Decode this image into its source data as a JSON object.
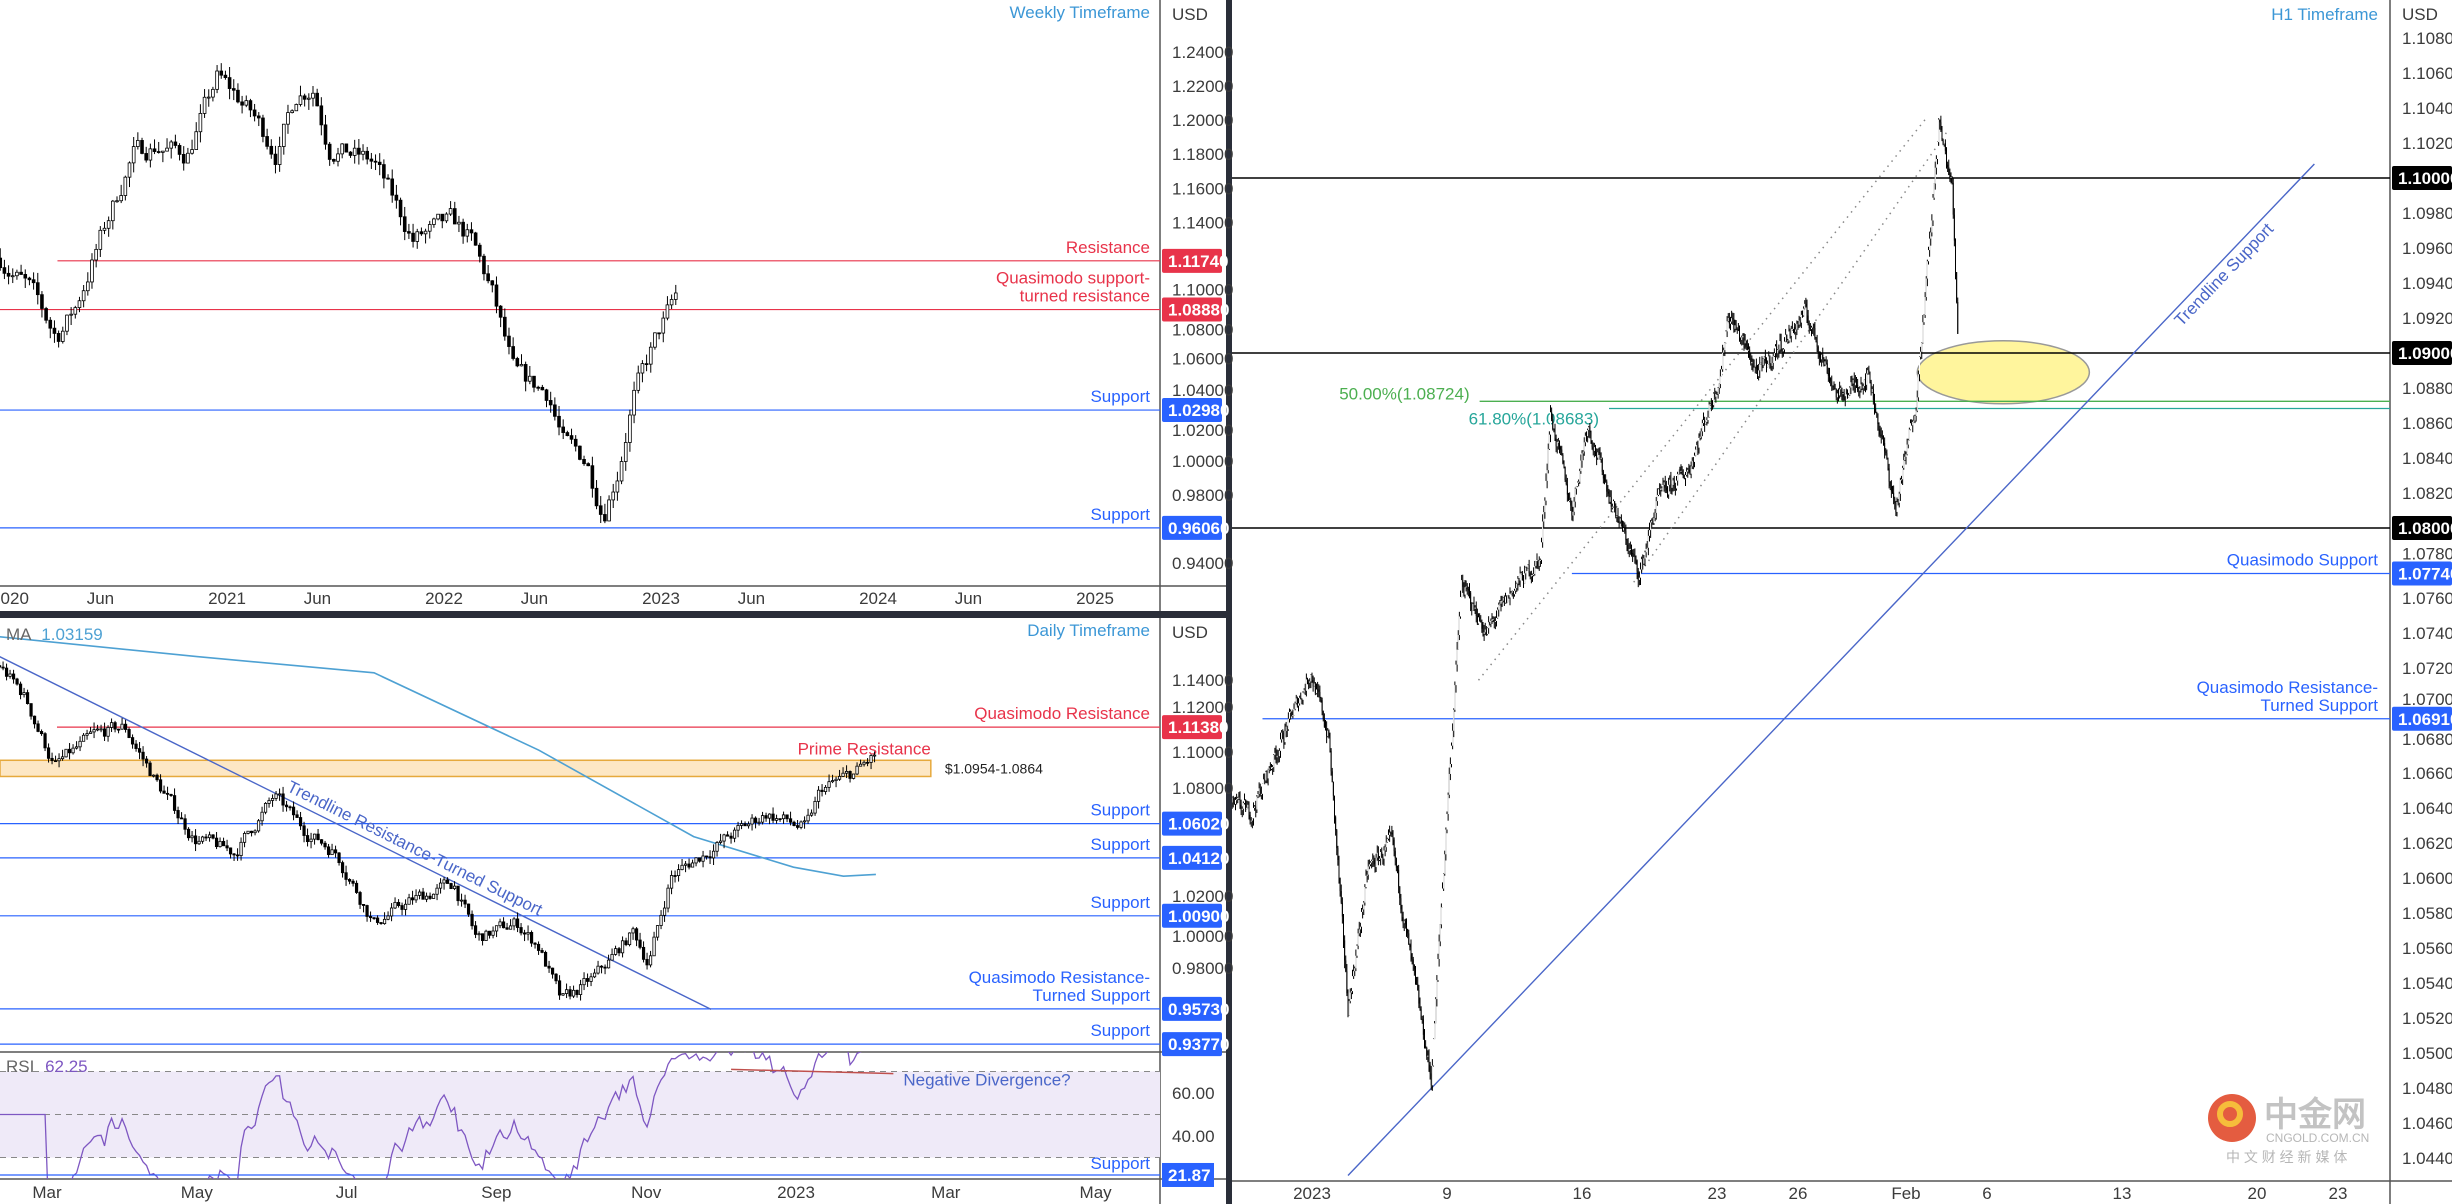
{
  "colors": {
    "red": "#e8334a",
    "blue": "#2962ff",
    "black": "#000000",
    "title_blue": "#3c97d6",
    "ma": "#4ea1d3",
    "rsi": "#7e57c2",
    "zone": "#fde7c4",
    "zone_border": "#e6a93c",
    "fib50": "#4caf50",
    "fib618": "#26a69a",
    "ellipse": "#fff59d"
  },
  "watermark": {
    "brand": "中金网",
    "domain": "CNGOLD.COM.CN",
    "tagline": "中 文 财 经 新 媒 体"
  },
  "chart_data": [
    {
      "id": "weekly",
      "type": "candlestick",
      "title": "Weekly Timeframe",
      "currency": "USD",
      "price_ticks": [
        "1.24000",
        "1.22000",
        "1.20000",
        "1.18000",
        "1.16000",
        "1.14000",
        "1.10000",
        "1.08000",
        "1.06000",
        "1.04000",
        "1.02000",
        "1.00000",
        "0.98000",
        "0.94000"
      ],
      "date_ticks": [
        {
          "label": "2020",
          "date": "2020-01-01"
        },
        {
          "label": "Jun",
          "date": "2020-06-01"
        },
        {
          "label": "2021",
          "date": "2021-01-01"
        },
        {
          "label": "Jun",
          "date": "2021-06-01"
        },
        {
          "label": "2022",
          "date": "2022-01-01"
        },
        {
          "label": "Jun",
          "date": "2022-06-01"
        },
        {
          "label": "2023",
          "date": "2023-01-01"
        },
        {
          "label": "Jun",
          "date": "2023-06-01"
        },
        {
          "label": "2024",
          "date": "2024-01-01"
        },
        {
          "label": "Jun",
          "date": "2024-06-01"
        },
        {
          "label": "2025",
          "date": "2025-01-01"
        }
      ],
      "levels": [
        {
          "price": 1.1174,
          "value_label": "1.11740",
          "text": [
            "Resistance"
          ],
          "color": "red",
          "from": "2020-03-20"
        },
        {
          "price": 1.0888,
          "value_label": "1.08880",
          "text": [
            "Quasimodo support-",
            "turned resistance"
          ],
          "color": "red",
          "from": "2019-12-01"
        },
        {
          "price": 1.0298,
          "value_label": "1.02980",
          "text": [
            "Support"
          ],
          "color": "blue",
          "from": "2019-12-01"
        },
        {
          "price": 0.9606,
          "value_label": "0.96060",
          "text": [
            "Support"
          ],
          "color": "blue",
          "from": "2019-12-01"
        }
      ],
      "price_path": [
        [
          "2019-12-15",
          1.119
        ],
        [
          "2020-02-05",
          1.1
        ],
        [
          "2020-03-18",
          1.073
        ],
        [
          "2020-04-20",
          1.09
        ],
        [
          "2020-06-01",
          1.13
        ],
        [
          "2020-07-25",
          1.18
        ],
        [
          "2020-09-01",
          1.185
        ],
        [
          "2020-10-25",
          1.18
        ],
        [
          "2020-12-15",
          1.225
        ],
        [
          "2021-01-15",
          1.215
        ],
        [
          "2021-02-20",
          1.2
        ],
        [
          "2021-03-25",
          1.18
        ],
        [
          "2021-04-25",
          1.215
        ],
        [
          "2021-05-25",
          1.22
        ],
        [
          "2021-06-20",
          1.185
        ],
        [
          "2021-09-05",
          1.175
        ],
        [
          "2021-11-10",
          1.13
        ],
        [
          "2022-01-15",
          1.14
        ],
        [
          "2022-02-15",
          1.13
        ],
        [
          "2022-03-20",
          1.1
        ],
        [
          "2022-04-28",
          1.05
        ],
        [
          "2022-06-25",
          1.04
        ],
        [
          "2022-07-20",
          1.01
        ],
        [
          "2022-08-28",
          1.0
        ],
        [
          "2022-09-25",
          0.97
        ],
        [
          "2022-10-20",
          0.995
        ],
        [
          "2022-11-15",
          1.037
        ],
        [
          "2022-12-25",
          1.073
        ],
        [
          "2023-02-01",
          1.1
        ]
      ]
    },
    {
      "id": "daily",
      "type": "candlestick",
      "title": "Daily Timeframe",
      "currency": "USD",
      "ma": {
        "label": "MA",
        "value": "1.03159",
        "path": [
          [
            "2022-02-12",
            1.164
          ],
          [
            "2022-05-01",
            1.153
          ],
          [
            "2022-07-12",
            1.144
          ],
          [
            "2022-09-18",
            1.101
          ],
          [
            "2022-11-20",
            1.053
          ],
          [
            "2022-12-30",
            1.036
          ],
          [
            "2023-01-20",
            1.031
          ],
          [
            "2023-02-03",
            1.032
          ]
        ]
      },
      "price_ticks": [
        "1.14000",
        "1.12000",
        "1.10000",
        "1.08000",
        "1.02000",
        "1.00000",
        "0.98000"
      ],
      "date_ticks": [
        {
          "label": "Mar",
          "date": "2022-03-01"
        },
        {
          "label": "May",
          "date": "2022-05-01"
        },
        {
          "label": "Jul",
          "date": "2022-07-01"
        },
        {
          "label": "Sep",
          "date": "2022-09-01"
        },
        {
          "label": "Nov",
          "date": "2022-11-01"
        },
        {
          "label": "2023",
          "date": "2023-01-01"
        },
        {
          "label": "Mar",
          "date": "2023-03-01"
        },
        {
          "label": "May",
          "date": "2023-05-01"
        }
      ],
      "zone": {
        "label": "Prime Resistance",
        "range_label": "$1.0954-1.0864",
        "high": 1.0954,
        "low": 1.0864,
        "to": "2023-02-25"
      },
      "trendline": {
        "label": "Trendline Resistance-Turned Support",
        "start": [
          "2022-02-12",
          1.153
        ],
        "end": [
          "2022-11-27",
          0.957
        ]
      },
      "levels": [
        {
          "price": 1.1138,
          "value_label": "1.11380",
          "text": [
            "Quasimodo Resistance"
          ],
          "color": "red",
          "from": "2022-03-05"
        },
        {
          "price": 1.0602,
          "value_label": "1.06020",
          "text": [
            "Support"
          ],
          "color": "blue",
          "from": "2022-02-01"
        },
        {
          "price": 1.0412,
          "value_label": "1.04120",
          "text": [
            "Support"
          ],
          "color": "blue",
          "from": "2022-02-01"
        },
        {
          "price": 1.009,
          "value_label": "1.00900",
          "text": [
            "Support"
          ],
          "color": "blue",
          "from": "2022-02-01"
        },
        {
          "price": 0.9573,
          "value_label": "0.95730",
          "text": [
            "Quasimodo Resistance-",
            "Turned Support"
          ],
          "color": "blue",
          "from": "2022-02-01"
        },
        {
          "price": 0.9377,
          "value_label": "0.93770",
          "text": [
            "Support"
          ],
          "color": "blue",
          "from": "2022-02-01"
        }
      ],
      "price_path": [
        [
          "2022-02-12",
          1.148
        ],
        [
          "2022-02-22",
          1.131
        ],
        [
          "2022-03-04",
          1.092
        ],
        [
          "2022-03-20",
          1.109
        ],
        [
          "2022-04-02",
          1.114
        ],
        [
          "2022-04-15",
          1.083
        ],
        [
          "2022-04-30",
          1.052
        ],
        [
          "2022-05-16",
          1.044
        ],
        [
          "2022-06-02",
          1.075
        ],
        [
          "2022-06-14",
          1.057
        ],
        [
          "2022-06-27",
          1.044
        ],
        [
          "2022-07-12",
          1.005
        ],
        [
          "2022-07-28",
          1.018
        ],
        [
          "2022-08-14",
          1.027
        ],
        [
          "2022-08-23",
          0.996
        ],
        [
          "2022-09-09",
          1.005
        ],
        [
          "2022-09-18",
          0.992
        ],
        [
          "2022-09-27",
          0.961
        ],
        [
          "2022-10-10",
          0.974
        ],
        [
          "2022-10-26",
          1.0
        ],
        [
          "2022-11-02",
          0.983
        ],
        [
          "2022-11-11",
          1.031
        ],
        [
          "2022-11-30",
          1.049
        ],
        [
          "2022-12-19",
          1.066
        ],
        [
          "2023-01-05",
          1.057
        ],
        [
          "2023-01-11",
          1.079
        ],
        [
          "2023-01-24",
          1.088
        ],
        [
          "2023-02-03",
          1.098
        ]
      ],
      "rsi": {
        "label": "RSI",
        "value": "62.25",
        "ticks": [
          "60.00",
          "40.00"
        ],
        "upper": 70,
        "lower": 30,
        "support": {
          "value": 21.87,
          "value_label": "21.87",
          "text": "Support"
        },
        "divergence": {
          "text": "Negative Divergence?",
          "start": [
            "2022-12-05",
            71
          ],
          "end": [
            "2023-02-10",
            69
          ]
        }
      }
    },
    {
      "id": "h1",
      "type": "candlestick",
      "title": "H1 Timeframe",
      "currency": "USD",
      "price_ticks": [
        "1.10800",
        "1.10600",
        "1.10400",
        "1.10200",
        "1.09800",
        "1.09600",
        "1.09400",
        "1.09200",
        "1.08800",
        "1.08600",
        "1.08400",
        "1.08200",
        "1.07800",
        "1.07600",
        "1.07400",
        "1.07200",
        "1.07000",
        "1.06800",
        "1.06600",
        "1.06400",
        "1.06200",
        "1.06000",
        "1.05800",
        "1.05600",
        "1.05400",
        "1.05200",
        "1.05000",
        "1.04800",
        "1.04600",
        "1.04400"
      ],
      "date_ticks": [
        {
          "label": "2023",
          "date": "2023-01-02T00"
        },
        {
          "label": "9",
          "date": "2023-01-09T00"
        },
        {
          "label": "16",
          "date": "2023-01-16T00"
        },
        {
          "label": "23",
          "date": "2023-01-23T00"
        },
        {
          "label": "26",
          "date": "2023-01-26T00"
        },
        {
          "label": "Feb",
          "date": "2023-02-01T00"
        },
        {
          "label": "6",
          "date": "2023-02-06T00"
        },
        {
          "label": "13",
          "date": "2023-02-13T00"
        },
        {
          "label": "20",
          "date": "2023-02-20T00"
        },
        {
          "label": "23",
          "date": "2023-02-23T00"
        }
      ],
      "levels": [
        {
          "price": 1.1,
          "value_label": "1.10000",
          "text": [],
          "color": "black",
          "from": "2022-12-28T00"
        },
        {
          "price": 1.09,
          "value_label": "1.09000",
          "text": [],
          "color": "black",
          "from": "2022-12-28T00"
        },
        {
          "price": 1.08,
          "value_label": "1.08000",
          "text": [],
          "color": "black",
          "from": "2022-12-28T00"
        },
        {
          "price": 1.0774,
          "value_label": "1.07740",
          "text": [
            "Quasimodo Support"
          ],
          "color": "blue",
          "from": "2023-01-13T15"
        },
        {
          "price": 1.0691,
          "value_label": "1.06910",
          "text": [
            "Quasimodo Resistance-",
            "Turned Support"
          ],
          "color": "blue",
          "from": "2022-12-29T04"
        }
      ],
      "fib": [
        {
          "label": "50.00%(1.08724)",
          "price": 1.08724,
          "color": "fib50",
          "from": "2023-01-10T05"
        },
        {
          "label": "61.80%(1.08683)",
          "price": 1.08683,
          "color": "fib618",
          "from": "2023-01-17T00"
        }
      ],
      "trendline": {
        "label": "Trendline Support",
        "start": [
          "2023-01-03T08",
          1.043
        ],
        "end": [
          "2023-02-22T03",
          1.1008
        ]
      },
      "dotted_lines": [
        {
          "start": [
            "2023-01-10T04",
            1.0713
          ],
          "end": [
            "2023-02-01T19",
            1.1035
          ]
        },
        {
          "start": [
            "2023-01-17T22",
            1.0769
          ],
          "end": [
            "2023-02-02T12",
            1.1026
          ]
        }
      ],
      "ellipse": {
        "from": "2023-02-01T10",
        "to": "2023-02-09T19",
        "high": 1.0907,
        "low": 1.0871
      },
      "price_path": [
        [
          "2022-12-28T00",
          1.0642
        ],
        [
          "2022-12-28T18",
          1.0637
        ],
        [
          "2022-12-29T15",
          1.067
        ],
        [
          "2022-12-30T23",
          1.0718
        ],
        [
          "2023-01-02T15",
          1.068
        ],
        [
          "2023-01-03T08",
          1.0526
        ],
        [
          "2023-01-04T02",
          1.0605
        ],
        [
          "2023-01-04T23",
          1.062
        ],
        [
          "2023-01-05T13",
          1.0564
        ],
        [
          "2023-01-06T10",
          1.0485
        ],
        [
          "2023-01-09T00",
          1.0638
        ],
        [
          "2023-01-09T13",
          1.0768
        ],
        [
          "2023-01-10T11",
          1.074
        ],
        [
          "2023-01-11T14",
          1.0768
        ],
        [
          "2023-01-12T11",
          1.0782
        ],
        [
          "2023-01-12T20",
          1.0865
        ],
        [
          "2023-01-13T15",
          1.081
        ],
        [
          "2023-01-16T05",
          1.086
        ],
        [
          "2023-01-17T02",
          1.0816
        ],
        [
          "2023-01-18T03",
          1.0773
        ],
        [
          "2023-01-18T19",
          1.0816
        ],
        [
          "2023-01-19T23",
          1.0834
        ],
        [
          "2023-01-23T03",
          1.0888
        ],
        [
          "2023-01-23T10",
          1.0923
        ],
        [
          "2023-01-24T13",
          1.0888
        ],
        [
          "2023-01-26T07",
          1.0923
        ],
        [
          "2023-01-27T12",
          1.0874
        ],
        [
          "2023-01-30T15",
          1.0888
        ],
        [
          "2023-01-31T15",
          1.081
        ],
        [
          "2023-02-01T09",
          1.0874
        ],
        [
          "2023-02-01T23",
          1.0977
        ],
        [
          "2023-02-02T05",
          1.1031
        ],
        [
          "2023-02-02T17",
          1.0995
        ],
        [
          "2023-02-02T22",
          1.0914
        ]
      ]
    }
  ]
}
